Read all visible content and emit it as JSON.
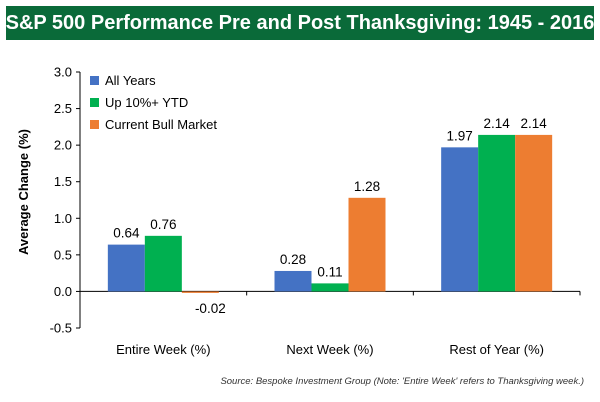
{
  "chart_data": {
    "type": "bar",
    "title": "S&P 500 Performance Pre and Post Thanksgiving: 1945 - 2016",
    "ylabel": "Average Change (%)",
    "xlabel": "",
    "categories": [
      "Entire Week (%)",
      "Next Week (%)",
      "Rest of Year (%)"
    ],
    "series": [
      {
        "name": "All Years",
        "color": "#4472c4",
        "values": [
          0.64,
          0.28,
          1.97
        ],
        "labels": [
          "0.64",
          "0.28",
          "1.97"
        ]
      },
      {
        "name": "Up 10%+ YTD",
        "color": "#00b050",
        "values": [
          0.76,
          0.11,
          2.14
        ],
        "labels": [
          "0.76",
          "0.11",
          "2.14"
        ]
      },
      {
        "name": "Current Bull Market",
        "color": "#ed7d31",
        "values": [
          -0.02,
          1.28,
          2.14
        ],
        "labels": [
          "-0.02",
          "1.28",
          "2.14"
        ]
      }
    ],
    "ylim": [
      -0.5,
      3.0
    ],
    "yticks": [
      "3.0",
      "2.5",
      "2.0",
      "1.5",
      "1.0",
      "0.5",
      "0.0",
      "-0.5"
    ],
    "ytick_values": [
      3.0,
      2.5,
      2.0,
      1.5,
      1.0,
      0.5,
      0.0,
      -0.5
    ],
    "grid": false,
    "legend": "top-left"
  },
  "source": "Source: Bespoke Investment Group (Note: 'Entire Week' refers to Thanksgiving week.)"
}
